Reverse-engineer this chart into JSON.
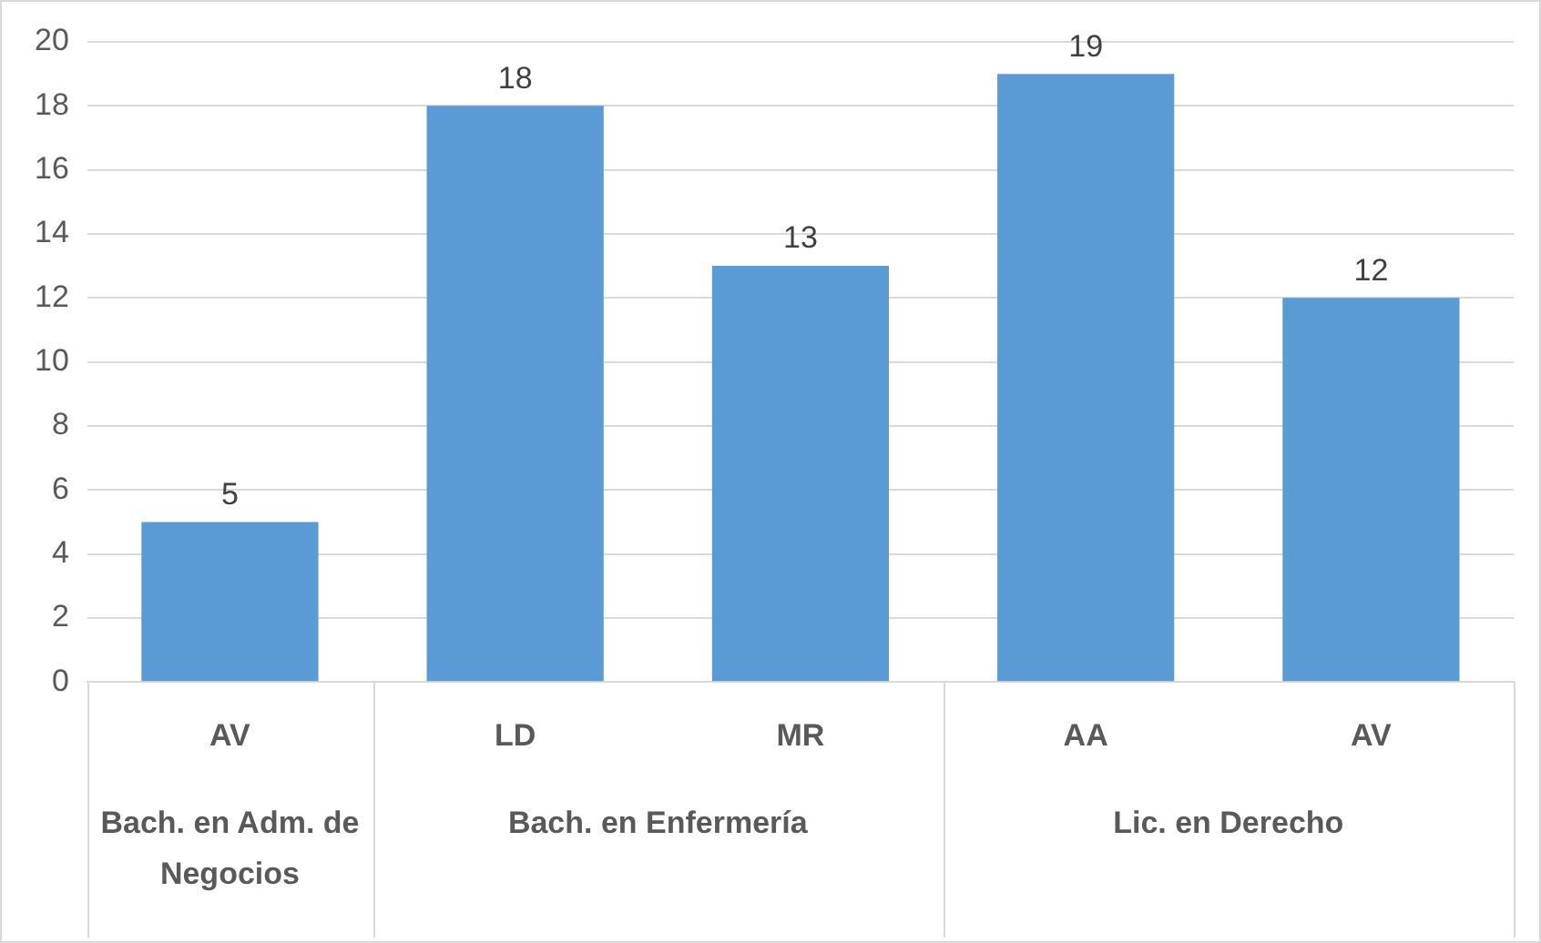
{
  "chart_data": {
    "type": "bar",
    "categories": [
      "AV",
      "LD",
      "MR",
      "AA",
      "AV"
    ],
    "values": [
      5,
      18,
      13,
      19,
      12
    ],
    "color": "#5b9bd5",
    "ylim": [
      0,
      20
    ],
    "yticks": [
      0,
      2,
      4,
      6,
      8,
      10,
      12,
      14,
      16,
      18,
      20
    ],
    "grid": "y",
    "data_labels": true,
    "legend": false,
    "annotations": [
      "Bach. en Adm. de Negocios",
      "Bach. en Enfermería",
      "Lic. en Derecho"
    ]
  }
}
